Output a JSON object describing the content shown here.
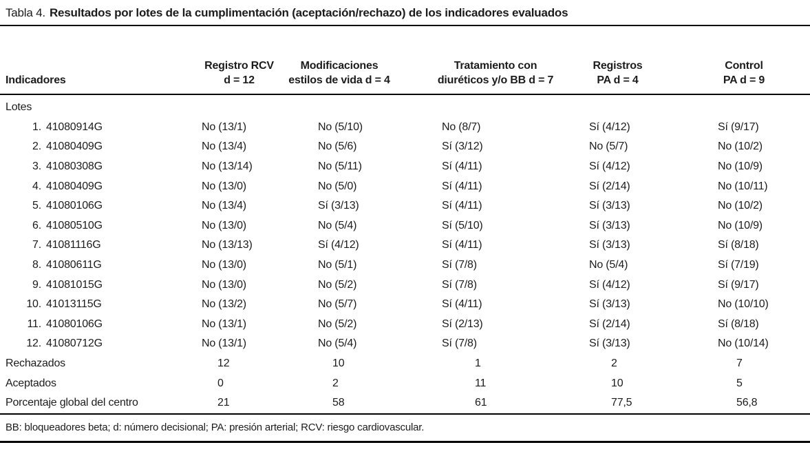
{
  "title": {
    "prefix": "Tabla 4.",
    "bold": "Resultados por lotes de la cumplimentación (aceptación/rechazo) de los indicadores evaluados"
  },
  "table": {
    "col1_header": "Indicadores",
    "headers": [
      {
        "line1": "Registro RCV",
        "line2": "d = 12"
      },
      {
        "line1": "Modificaciones",
        "line2": "estilos de vida d = 4"
      },
      {
        "line1": "Tratamiento con",
        "line2": "diuréticos y/o BB d = 7"
      },
      {
        "line1": "Registros",
        "line2": "PA d = 4"
      },
      {
        "line1": "Control",
        "line2": "PA d = 9"
      }
    ],
    "group_label": "Lotes",
    "lots": [
      {
        "num": "1.",
        "code": "41080914G",
        "values": [
          "No (13/1)",
          "No (5/10)",
          "No (8/7)",
          "Sí (4/12)",
          "Sí (9/17)"
        ]
      },
      {
        "num": "2.",
        "code": "41080409G",
        "values": [
          "No (13/4)",
          "No (5/6)",
          "Sí (3/12)",
          "No (5/7)",
          "No (10/2)"
        ]
      },
      {
        "num": "3.",
        "code": "41080308G",
        "values": [
          "No (13/14)",
          "No (5/11)",
          "Sí (4/11)",
          "Sí (4/12)",
          "No (10/9)"
        ]
      },
      {
        "num": "4.",
        "code": "41080409G",
        "values": [
          "No (13/0)",
          "No (5/0)",
          "Sí (4/11)",
          "Sí (2/14)",
          "No (10/11)"
        ]
      },
      {
        "num": "5.",
        "code": "41080106G",
        "values": [
          "No (13/4)",
          "Sí (3/13)",
          "Sí (4/11)",
          "Sí (3/13)",
          "No (10/2)"
        ]
      },
      {
        "num": "6.",
        "code": "41080510G",
        "values": [
          "No (13/0)",
          "No (5/4)",
          "Sí (5/10)",
          "Sí (3/13)",
          "No (10/9)"
        ]
      },
      {
        "num": "7.",
        "code": "41081116G",
        "values": [
          "No (13/13)",
          "Sí (4/12)",
          "Sí (4/11)",
          "Sí (3/13)",
          "Sí (8/18)"
        ]
      },
      {
        "num": "8.",
        "code": "41080611G",
        "values": [
          "No (13/0)",
          "No (5/1)",
          "Sí (7/8)",
          "No (5/4)",
          "Sí (7/19)"
        ]
      },
      {
        "num": "9.",
        "code": "41081015G",
        "values": [
          "No (13/0)",
          "No (5/2)",
          "Sí (7/8)",
          "Sí (4/12)",
          "Sí (9/17)"
        ]
      },
      {
        "num": "10.",
        "code": "41013115G",
        "values": [
          "No (13/2)",
          "No (5/7)",
          "Sí (4/11)",
          "Sí (3/13)",
          "No (10/10)"
        ]
      },
      {
        "num": "11.",
        "code": "41080106G",
        "values": [
          "No (13/1)",
          "No (5/2)",
          "Sí (2/13)",
          "Sí (2/14)",
          "Sí (8/18)"
        ]
      },
      {
        "num": "12.",
        "code": "41080712G",
        "values": [
          "No (13/1)",
          "No (5/4)",
          "Sí (7/8)",
          "Sí (3/13)",
          "No (10/14)"
        ]
      }
    ],
    "summary": [
      {
        "label": "Rechazados",
        "values": [
          "12",
          "10",
          "1",
          "2",
          "7"
        ]
      },
      {
        "label": "Aceptados",
        "values": [
          "0",
          "2",
          "11",
          "10",
          "5"
        ]
      },
      {
        "label": "Porcentaje global del centro",
        "values": [
          "21",
          "58",
          "61",
          "77,5",
          "56,8"
        ]
      }
    ]
  },
  "footnote": "BB: bloqueadores beta; d: número decisional; PA: presión arterial; RCV: riesgo cardiovascular."
}
